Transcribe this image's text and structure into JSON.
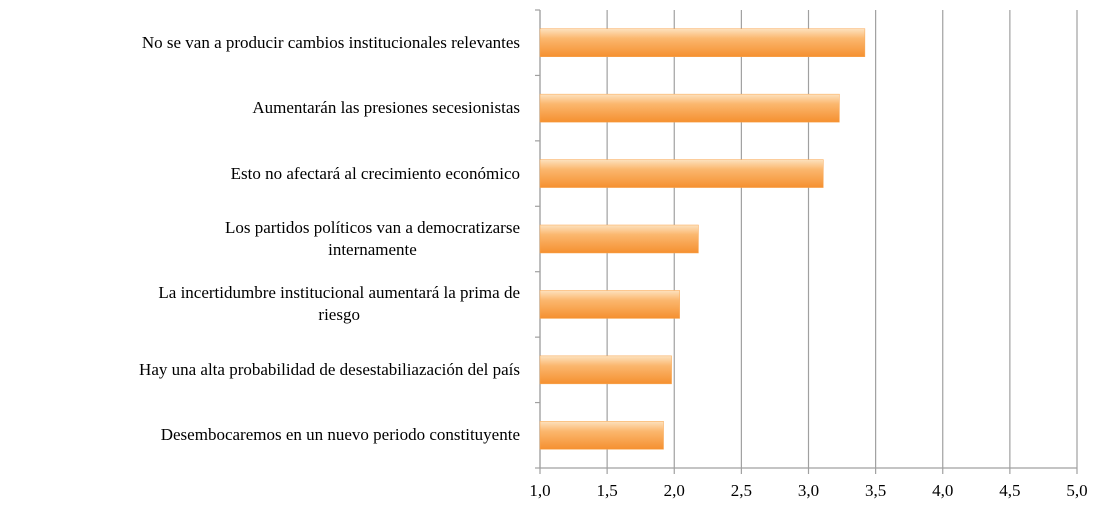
{
  "chart_data": {
    "type": "barh",
    "categories": [
      "No se van a producir cambios institucionales relevantes",
      "Aumentarán las presiones secesionistas",
      "Esto no afectará al crecimiento económico",
      "Los partidos políticos van a democratizarse\ninternamente",
      "La incertidumbre institucional aumentará la prima de\nriesgo",
      "Hay una alta probabilidad de desestabiliazación del país",
      "Desembocaremos en un nuevo periodo constituyente"
    ],
    "values": [
      3.42,
      3.23,
      3.11,
      2.18,
      2.04,
      1.98,
      1.92
    ],
    "color": "#f9a54f",
    "xlim": [
      1.0,
      5.0
    ],
    "xticks": [
      {
        "value": 1.0,
        "label": "1,0"
      },
      {
        "value": 1.5,
        "label": "1,5"
      },
      {
        "value": 2.0,
        "label": "2,0"
      },
      {
        "value": 2.5,
        "label": "2,5"
      },
      {
        "value": 3.0,
        "label": "3,0"
      },
      {
        "value": 3.5,
        "label": "3,5"
      },
      {
        "value": 4.0,
        "label": "4,0"
      },
      {
        "value": 4.5,
        "label": "4,5"
      },
      {
        "value": 5.0,
        "label": "5,0"
      }
    ],
    "grid": true
  }
}
